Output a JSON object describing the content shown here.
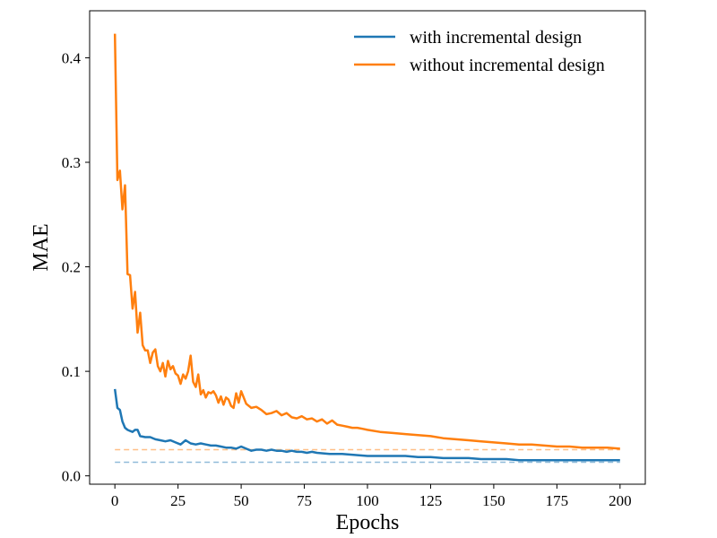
{
  "chart_data": {
    "type": "line",
    "title": "",
    "xlabel": "Epochs",
    "ylabel": "MAE",
    "xlim": [
      -10,
      210
    ],
    "ylim": [
      -0.008,
      0.445
    ],
    "xticks": [
      0,
      25,
      50,
      75,
      100,
      125,
      150,
      175,
      200
    ],
    "xtick_labels": [
      "0",
      "25",
      "50",
      "75",
      "100",
      "125",
      "150",
      "175",
      "200"
    ],
    "yticks": [
      0.0,
      0.1,
      0.2,
      0.3,
      0.4
    ],
    "ytick_labels": [
      "0.0",
      "0.1",
      "0.2",
      "0.3",
      "0.4"
    ],
    "grid": false,
    "legend_position": "top-right",
    "series": [
      {
        "name": "with incremental design",
        "color": "#1f77b4",
        "x": [
          0,
          1,
          2,
          3,
          4,
          5,
          6,
          7,
          8,
          9,
          10,
          12,
          14,
          16,
          18,
          20,
          22,
          24,
          26,
          28,
          30,
          32,
          34,
          36,
          38,
          40,
          42,
          44,
          46,
          48,
          50,
          52,
          54,
          56,
          58,
          60,
          62,
          64,
          66,
          68,
          70,
          72,
          74,
          76,
          78,
          80,
          85,
          90,
          95,
          100,
          105,
          110,
          115,
          120,
          125,
          130,
          135,
          140,
          145,
          150,
          155,
          160,
          165,
          170,
          175,
          180,
          185,
          190,
          195,
          200
        ],
        "y": [
          0.083,
          0.065,
          0.063,
          0.052,
          0.046,
          0.044,
          0.043,
          0.042,
          0.044,
          0.044,
          0.038,
          0.037,
          0.037,
          0.035,
          0.034,
          0.033,
          0.034,
          0.032,
          0.03,
          0.034,
          0.031,
          0.03,
          0.031,
          0.03,
          0.029,
          0.029,
          0.028,
          0.027,
          0.027,
          0.026,
          0.028,
          0.026,
          0.024,
          0.025,
          0.025,
          0.024,
          0.025,
          0.024,
          0.024,
          0.023,
          0.024,
          0.023,
          0.023,
          0.022,
          0.023,
          0.022,
          0.021,
          0.021,
          0.02,
          0.019,
          0.019,
          0.019,
          0.019,
          0.018,
          0.018,
          0.017,
          0.017,
          0.017,
          0.016,
          0.016,
          0.016,
          0.015,
          0.015,
          0.015,
          0.015,
          0.015,
          0.015,
          0.015,
          0.015,
          0.015
        ]
      },
      {
        "name": "without incremental design",
        "color": "#ff7f0e",
        "x": [
          0,
          1,
          2,
          3,
          4,
          5,
          6,
          7,
          8,
          9,
          10,
          11,
          12,
          13,
          14,
          15,
          16,
          17,
          18,
          19,
          20,
          21,
          22,
          23,
          24,
          25,
          26,
          27,
          28,
          29,
          30,
          31,
          32,
          33,
          34,
          35,
          36,
          37,
          38,
          39,
          40,
          41,
          42,
          43,
          44,
          45,
          46,
          47,
          48,
          49,
          50,
          52,
          54,
          56,
          58,
          60,
          62,
          64,
          66,
          68,
          70,
          72,
          74,
          76,
          78,
          80,
          82,
          84,
          86,
          88,
          90,
          92,
          94,
          96,
          98,
          100,
          105,
          110,
          115,
          120,
          125,
          130,
          135,
          140,
          145,
          150,
          155,
          160,
          165,
          170,
          175,
          180,
          185,
          190,
          195,
          200
        ],
        "y": [
          0.423,
          0.283,
          0.292,
          0.255,
          0.278,
          0.193,
          0.192,
          0.16,
          0.176,
          0.137,
          0.156,
          0.125,
          0.12,
          0.12,
          0.108,
          0.118,
          0.121,
          0.105,
          0.1,
          0.108,
          0.095,
          0.11,
          0.102,
          0.105,
          0.098,
          0.096,
          0.088,
          0.097,
          0.093,
          0.1,
          0.115,
          0.09,
          0.085,
          0.097,
          0.078,
          0.082,
          0.075,
          0.08,
          0.079,
          0.081,
          0.077,
          0.07,
          0.076,
          0.068,
          0.075,
          0.073,
          0.067,
          0.065,
          0.079,
          0.07,
          0.081,
          0.069,
          0.065,
          0.066,
          0.063,
          0.059,
          0.06,
          0.062,
          0.058,
          0.06,
          0.056,
          0.055,
          0.057,
          0.054,
          0.055,
          0.052,
          0.054,
          0.05,
          0.053,
          0.049,
          0.048,
          0.047,
          0.046,
          0.046,
          0.045,
          0.044,
          0.042,
          0.041,
          0.04,
          0.039,
          0.038,
          0.036,
          0.035,
          0.034,
          0.033,
          0.032,
          0.031,
          0.03,
          0.03,
          0.029,
          0.028,
          0.028,
          0.027,
          0.027,
          0.027,
          0.026
        ]
      }
    ],
    "reference_lines": [
      {
        "name": "with incremental design baseline",
        "y": 0.013,
        "color": "#1f77b4",
        "style": "dashed"
      },
      {
        "name": "without incremental design baseline",
        "y": 0.025,
        "color": "#ff7f0e",
        "style": "dashed"
      }
    ]
  }
}
